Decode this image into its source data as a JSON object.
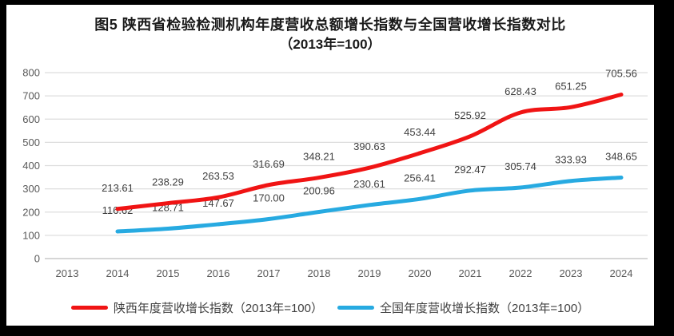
{
  "title": {
    "line1": "图5  陕西省检验检测机构年度营收总额增长指数与全国营收增长指数对比",
    "line2": "（2013年=100）"
  },
  "chart_data": {
    "type": "line",
    "smoothed": true,
    "x": [
      "2013",
      "2014",
      "2015",
      "2016",
      "2017",
      "2018",
      "2019",
      "2020",
      "2021",
      "2022",
      "2023",
      "2024"
    ],
    "series": [
      {
        "name": "陕西年度营收增长指数（2013年=100）",
        "color": "#f01414",
        "values": [
          null,
          "213.61",
          "238.29",
          "263.53",
          "316.69",
          "348.21",
          "390.63",
          "453.44",
          "525.92",
          "628.43",
          "651.25",
          "705.56"
        ]
      },
      {
        "name": "全国年度营收增长指数（2013年=100）",
        "color": "#27aae1",
        "values": [
          null,
          "116.62",
          "128.71",
          "147.67",
          "170.00",
          "200.96",
          "230.61",
          "256.41",
          "292.47",
          "305.74",
          "333.93",
          "348.65"
        ]
      }
    ],
    "y_ticks": [
      "0",
      "100",
      "200",
      "300",
      "400",
      "500",
      "600",
      "700",
      "800"
    ],
    "ylim": [
      0,
      800
    ],
    "xlabel": "",
    "ylabel": "",
    "grid": "horizontal",
    "legend_position": "bottom"
  },
  "colors": {
    "gridline": "#dddddd",
    "zero_line": "#c8c8c8",
    "tick_text": "#595959",
    "data_label": "#3f3f3f",
    "background": "#ffffff",
    "surround": "#000000"
  }
}
